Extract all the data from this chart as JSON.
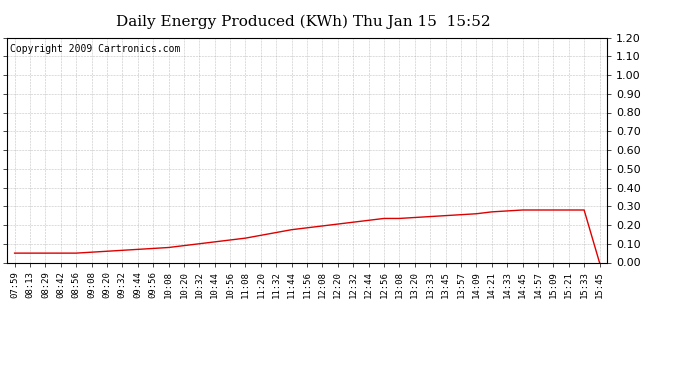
{
  "title": "Daily Energy Produced (KWh) Thu Jan 15  15:52",
  "copyright": "Copyright 2009 Cartronics.com",
  "line_color": "#dd0000",
  "background_color": "#ffffff",
  "plot_bg_color": "#ffffff",
  "grid_color": "#999999",
  "ylim": [
    0.0,
    1.2
  ],
  "yticks": [
    0.0,
    0.1,
    0.2,
    0.3,
    0.4,
    0.5,
    0.6,
    0.7,
    0.8,
    0.9,
    1.0,
    1.1,
    1.2
  ],
  "x_labels": [
    "07:59",
    "08:13",
    "08:29",
    "08:42",
    "08:56",
    "09:08",
    "09:20",
    "09:32",
    "09:44",
    "09:56",
    "10:08",
    "10:20",
    "10:32",
    "10:44",
    "10:56",
    "11:08",
    "11:20",
    "11:32",
    "11:44",
    "11:56",
    "12:08",
    "12:20",
    "12:32",
    "12:44",
    "12:56",
    "13:08",
    "13:20",
    "13:33",
    "13:45",
    "13:57",
    "14:09",
    "14:21",
    "14:33",
    "14:45",
    "14:57",
    "15:09",
    "15:21",
    "15:33",
    "15:45"
  ],
  "y_values": [
    0.05,
    0.05,
    0.05,
    0.05,
    0.05,
    0.055,
    0.06,
    0.065,
    0.07,
    0.075,
    0.08,
    0.09,
    0.1,
    0.11,
    0.12,
    0.13,
    0.145,
    0.16,
    0.175,
    0.185,
    0.195,
    0.205,
    0.215,
    0.225,
    0.235,
    0.235,
    0.24,
    0.245,
    0.25,
    0.255,
    0.26,
    0.27,
    0.275,
    0.28,
    0.28,
    0.28,
    0.28,
    0.28,
    0.0
  ],
  "title_fontsize": 11,
  "copyright_fontsize": 7,
  "tick_fontsize": 6.5,
  "ytick_fontsize": 8
}
